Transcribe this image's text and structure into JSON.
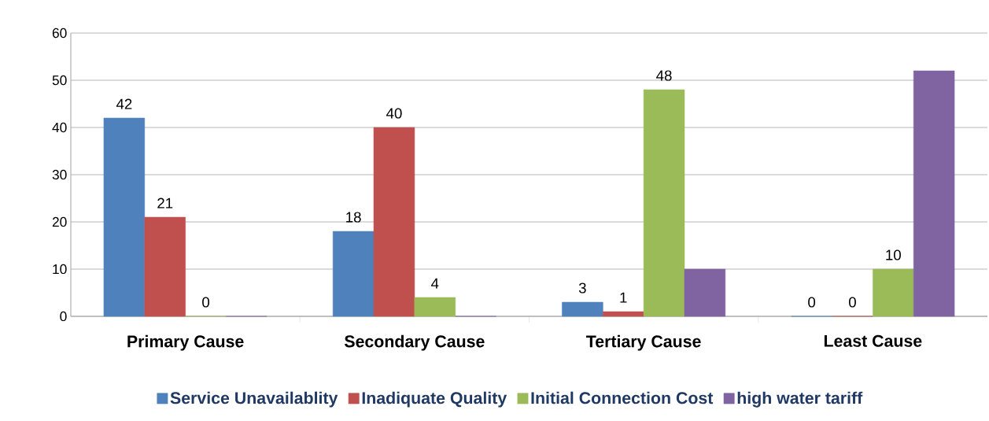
{
  "chart_data": {
    "type": "bar",
    "categories": [
      "Primary Cause",
      "Secondary Cause",
      "Tertiary Cause",
      "Least Cause"
    ],
    "series": [
      {
        "name": "Service Unavailablity",
        "color": "#4f81bd",
        "values": [
          42,
          18,
          3,
          0
        ],
        "value_labels": [
          "42",
          "18",
          "3",
          "0"
        ]
      },
      {
        "name": "Inadiquate Quality",
        "color": "#c0504d",
        "values": [
          21,
          40,
          1,
          0
        ],
        "value_labels": [
          "21",
          "40",
          "1",
          "0"
        ]
      },
      {
        "name": "Initial Connection Cost",
        "color": "#9bbb59",
        "values": [
          0,
          4,
          48,
          10
        ],
        "value_labels": [
          "0",
          "4",
          "48",
          "10"
        ]
      },
      {
        "name": "high water tariff",
        "color": "#8064a2",
        "values": [
          0,
          0,
          10,
          52
        ],
        "value_labels": [
          null,
          null,
          null,
          null
        ]
      }
    ],
    "ylim": [
      0,
      60
    ],
    "yticks": [
      0,
      10,
      20,
      30,
      40,
      50,
      60
    ],
    "grid": "y",
    "legend": "bottom"
  }
}
